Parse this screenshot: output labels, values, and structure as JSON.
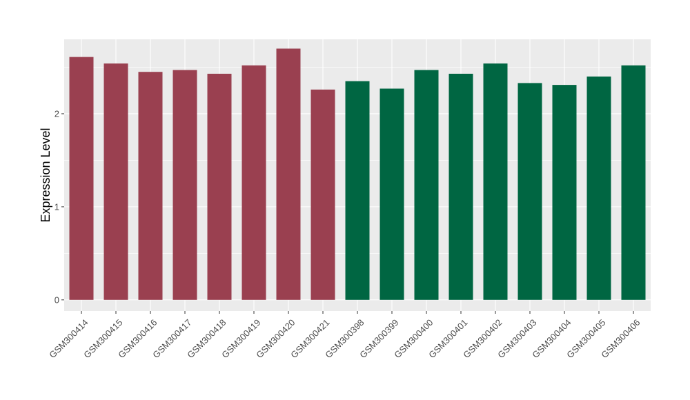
{
  "chart_data": {
    "type": "bar",
    "title": "",
    "xlabel": "",
    "ylabel": "Expression Level",
    "ylim": [
      -0.12,
      2.8
    ],
    "yticks": [
      0,
      1,
      2
    ],
    "grid": true,
    "legend": "none",
    "categories": [
      "GSM300414",
      "GSM300415",
      "GSM300416",
      "GSM300417",
      "GSM300418",
      "GSM300419",
      "GSM300420",
      "GSM300421",
      "GSM300398",
      "GSM300399",
      "GSM300400",
      "GSM300401",
      "GSM300402",
      "GSM300403",
      "GSM300404",
      "GSM300405",
      "GSM300406"
    ],
    "values": [
      2.61,
      2.54,
      2.45,
      2.47,
      2.43,
      2.52,
      2.7,
      2.26,
      2.35,
      2.27,
      2.47,
      2.43,
      2.54,
      2.33,
      2.31,
      2.4,
      2.52
    ],
    "bar_colors": [
      "#9a4050",
      "#9a4050",
      "#9a4050",
      "#9a4050",
      "#9a4050",
      "#9a4050",
      "#9a4050",
      "#9a4050",
      "#006642",
      "#006642",
      "#006642",
      "#006642",
      "#006642",
      "#006642",
      "#006642",
      "#006642",
      "#006642"
    ],
    "panel_background": "#ebebeb",
    "gridline_color": "#ffffff"
  }
}
